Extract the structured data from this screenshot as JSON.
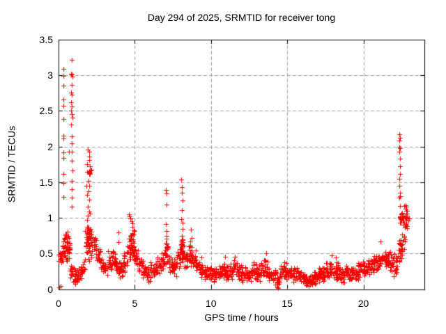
{
  "chart_data": {
    "type": "scatter",
    "title": "Day 294 of 2025, SRMTID for receiver tong",
    "xlabel": "GPS time / hours",
    "ylabel": "SRMTID / TECUs",
    "xlim": [
      0,
      24
    ],
    "ylim": [
      0,
      3.5
    ],
    "xticks": [
      0,
      5,
      10,
      15,
      20
    ],
    "yticks": [
      0,
      0.5,
      1,
      1.5,
      2,
      2.5,
      3,
      3.5
    ],
    "grid": true,
    "grid_color": "#9c9c9c",
    "marker": "plus",
    "marker_color": "#ff0000",
    "axis_color": "#000000",
    "background": "#ffffff",
    "legend": null,
    "seed": 20251021,
    "band_bin_width": 0.25,
    "band": [
      [
        0.125,
        0.3,
        0.55,
        16
      ],
      [
        0.375,
        0.3,
        0.82,
        18
      ],
      [
        0.625,
        0.25,
        0.88,
        18
      ],
      [
        0.875,
        0.1,
        0.4,
        16
      ],
      [
        1.125,
        0.05,
        0.28,
        16
      ],
      [
        1.375,
        0.08,
        0.3,
        16
      ],
      [
        1.625,
        0.15,
        0.45,
        16
      ],
      [
        1.875,
        0.3,
        0.95,
        18
      ],
      [
        2.125,
        0.35,
        0.9,
        18
      ],
      [
        2.375,
        0.35,
        0.85,
        16
      ],
      [
        2.625,
        0.3,
        0.6,
        16
      ],
      [
        2.875,
        0.22,
        0.48,
        16
      ],
      [
        3.125,
        0.18,
        0.42,
        16
      ],
      [
        3.375,
        0.25,
        0.55,
        16
      ],
      [
        3.625,
        0.28,
        0.58,
        16
      ],
      [
        3.875,
        0.15,
        0.45,
        16
      ],
      [
        4.125,
        0.12,
        0.4,
        16
      ],
      [
        4.375,
        0.2,
        0.55,
        16
      ],
      [
        4.625,
        0.3,
        0.75,
        18
      ],
      [
        4.875,
        0.35,
        0.95,
        18
      ],
      [
        5.125,
        0.3,
        0.6,
        16
      ],
      [
        5.375,
        0.22,
        0.5,
        16
      ],
      [
        5.625,
        0.15,
        0.4,
        16
      ],
      [
        5.875,
        0.1,
        0.32,
        16
      ],
      [
        6.125,
        0.1,
        0.4,
        16
      ],
      [
        6.375,
        0.12,
        0.42,
        16
      ],
      [
        6.625,
        0.18,
        0.5,
        16
      ],
      [
        6.875,
        0.25,
        0.6,
        16
      ],
      [
        7.125,
        0.3,
        0.65,
        16
      ],
      [
        7.375,
        0.2,
        0.5,
        16
      ],
      [
        7.625,
        0.15,
        0.45,
        16
      ],
      [
        7.875,
        0.25,
        0.6,
        16
      ],
      [
        8.125,
        0.3,
        0.7,
        18
      ],
      [
        8.375,
        0.25,
        0.6,
        16
      ],
      [
        8.625,
        0.3,
        0.65,
        16
      ],
      [
        8.875,
        0.25,
        0.55,
        16
      ],
      [
        9.125,
        0.2,
        0.45,
        16
      ],
      [
        9.375,
        0.15,
        0.42,
        16
      ],
      [
        9.625,
        0.12,
        0.35,
        16
      ],
      [
        9.875,
        0.1,
        0.32,
        16
      ],
      [
        10.125,
        0.1,
        0.32,
        16
      ],
      [
        10.375,
        0.12,
        0.35,
        16
      ],
      [
        10.625,
        0.1,
        0.35,
        16
      ],
      [
        10.875,
        0.12,
        0.42,
        16
      ],
      [
        11.125,
        0.1,
        0.35,
        16
      ],
      [
        11.375,
        0.12,
        0.38,
        16
      ],
      [
        11.625,
        0.15,
        0.45,
        16
      ],
      [
        11.875,
        0.1,
        0.38,
        16
      ],
      [
        12.125,
        0.1,
        0.35,
        16
      ],
      [
        12.375,
        0.08,
        0.3,
        16
      ],
      [
        12.625,
        0.1,
        0.35,
        16
      ],
      [
        12.875,
        0.12,
        0.4,
        16
      ],
      [
        13.125,
        0.1,
        0.35,
        16
      ],
      [
        13.375,
        0.12,
        0.4,
        16
      ],
      [
        13.625,
        0.15,
        0.48,
        16
      ],
      [
        13.875,
        0.08,
        0.3,
        16
      ],
      [
        14.125,
        0.05,
        0.28,
        16
      ],
      [
        14.375,
        0.02,
        0.25,
        16
      ],
      [
        14.625,
        0.08,
        0.35,
        16
      ],
      [
        14.875,
        0.1,
        0.4,
        16
      ],
      [
        15.125,
        0.1,
        0.35,
        16
      ],
      [
        15.375,
        0.08,
        0.32,
        16
      ],
      [
        15.625,
        0.1,
        0.35,
        16
      ],
      [
        15.875,
        0.08,
        0.3,
        16
      ],
      [
        16.125,
        0.05,
        0.28,
        16
      ],
      [
        16.375,
        0.03,
        0.22,
        16
      ],
      [
        16.625,
        0.03,
        0.2,
        16
      ],
      [
        16.875,
        0.05,
        0.28,
        16
      ],
      [
        17.125,
        0.08,
        0.32,
        16
      ],
      [
        17.375,
        0.1,
        0.35,
        16
      ],
      [
        17.625,
        0.1,
        0.4,
        16
      ],
      [
        17.875,
        0.12,
        0.45,
        16
      ],
      [
        18.125,
        0.1,
        0.42,
        16
      ],
      [
        18.375,
        0.1,
        0.38,
        16
      ],
      [
        18.625,
        0.08,
        0.32,
        16
      ],
      [
        18.875,
        0.1,
        0.35,
        16
      ],
      [
        19.125,
        0.08,
        0.32,
        16
      ],
      [
        19.375,
        0.1,
        0.35,
        16
      ],
      [
        19.625,
        0.12,
        0.38,
        16
      ],
      [
        19.875,
        0.15,
        0.4,
        16
      ],
      [
        20.125,
        0.15,
        0.42,
        16
      ],
      [
        20.375,
        0.18,
        0.45,
        16
      ],
      [
        20.625,
        0.2,
        0.48,
        16
      ],
      [
        20.875,
        0.25,
        0.52,
        16
      ],
      [
        21.125,
        0.28,
        0.55,
        16
      ],
      [
        21.375,
        0.3,
        0.58,
        16
      ],
      [
        21.625,
        0.25,
        0.55,
        16
      ],
      [
        21.875,
        0.15,
        0.6,
        16
      ],
      [
        22.125,
        0.08,
        0.55,
        16
      ],
      [
        22.375,
        0.25,
        0.85,
        14
      ],
      [
        22.625,
        0.5,
        0.9,
        8
      ],
      [
        22.875,
        0.85,
        1.2,
        8
      ]
    ],
    "clusters": [
      [
        0.55,
        0.18,
        0.62,
        0.22,
        18
      ],
      [
        1.95,
        0.12,
        0.74,
        0.38,
        26
      ],
      [
        2.02,
        0.14,
        1.64,
        0.06,
        10
      ],
      [
        4.8,
        0.15,
        0.62,
        0.25,
        16
      ],
      [
        7.06,
        0.05,
        0.62,
        0.15,
        8
      ],
      [
        8.1,
        0.06,
        0.55,
        0.25,
        12
      ],
      [
        22.45,
        0.1,
        0.55,
        0.25,
        14
      ],
      [
        22.62,
        0.25,
        1.02,
        0.18,
        40
      ]
    ],
    "points": [
      [
        0.31,
        3.09
      ],
      [
        0.3,
        2.99
      ],
      [
        0.31,
        2.86
      ],
      [
        0.32,
        2.66
      ],
      [
        0.31,
        2.57
      ],
      [
        0.3,
        2.39
      ],
      [
        0.31,
        2.15
      ],
      [
        0.32,
        2.11
      ],
      [
        0.3,
        1.92
      ],
      [
        0.31,
        1.84
      ],
      [
        0.3,
        1.62
      ],
      [
        0.31,
        1.49
      ],
      [
        0.3,
        1.29
      ],
      [
        0.88,
        3.22
      ],
      [
        0.8,
        3.02
      ],
      [
        0.85,
        3.01
      ],
      [
        0.9,
        2.98
      ],
      [
        0.86,
        2.87
      ],
      [
        0.8,
        2.76
      ],
      [
        0.88,
        2.73
      ],
      [
        0.82,
        2.62
      ],
      [
        0.88,
        2.56
      ],
      [
        0.82,
        2.5
      ],
      [
        0.86,
        2.46
      ],
      [
        0.9,
        2.41
      ],
      [
        0.84,
        2.31
      ],
      [
        0.87,
        2.14
      ],
      [
        0.85,
        2.05
      ],
      [
        0.7,
        1.93
      ],
      [
        0.88,
        1.93
      ],
      [
        0.85,
        1.8
      ],
      [
        0.9,
        1.66
      ],
      [
        0.86,
        1.52
      ],
      [
        0.89,
        1.4
      ],
      [
        0.85,
        1.28
      ],
      [
        0.88,
        1.16
      ],
      [
        1.94,
        1.96
      ],
      [
        1.99,
        1.86
      ],
      [
        2.03,
        1.93
      ],
      [
        2.03,
        1.81
      ],
      [
        1.87,
        1.75
      ],
      [
        2.06,
        1.72
      ],
      [
        1.95,
        1.52
      ],
      [
        1.83,
        1.45
      ],
      [
        2.0,
        1.45
      ],
      [
        1.95,
        1.37
      ],
      [
        1.87,
        1.32
      ],
      [
        2.02,
        1.25
      ],
      [
        1.91,
        1.16
      ],
      [
        3.92,
        0.8
      ],
      [
        3.95,
        0.66
      ],
      [
        4.62,
        1.05
      ],
      [
        4.66,
        1.02
      ],
      [
        4.72,
        0.99
      ],
      [
        4.78,
        0.95
      ],
      [
        4.85,
        0.92
      ],
      [
        7.04,
        1.39
      ],
      [
        7.1,
        1.34
      ],
      [
        7.07,
        1.19
      ],
      [
        7.05,
        0.91
      ],
      [
        7.09,
        0.82
      ],
      [
        7.07,
        0.75
      ],
      [
        8.04,
        1.54
      ],
      [
        8.07,
        1.43
      ],
      [
        8.1,
        1.35
      ],
      [
        8.12,
        1.24
      ],
      [
        8.09,
        1.11
      ],
      [
        8.06,
        0.98
      ],
      [
        8.12,
        0.93
      ],
      [
        8.15,
        0.84
      ],
      [
        8.09,
        0.75
      ],
      [
        8.04,
        0.67
      ],
      [
        8.68,
        0.83
      ],
      [
        8.73,
        0.72
      ],
      [
        8.65,
        0.67
      ],
      [
        22.35,
        2.17
      ],
      [
        22.38,
        2.12
      ],
      [
        22.36,
        2.08
      ],
      [
        22.34,
        2.0
      ],
      [
        22.4,
        1.98
      ],
      [
        22.37,
        1.93
      ],
      [
        22.39,
        1.83
      ],
      [
        22.41,
        1.72
      ],
      [
        22.38,
        1.62
      ],
      [
        22.36,
        1.55
      ],
      [
        22.34,
        1.45
      ],
      [
        22.39,
        1.35
      ],
      [
        22.37,
        1.28
      ],
      [
        22.42,
        1.3
      ],
      [
        14.35,
        0.02
      ],
      [
        14.38,
        0.01
      ],
      [
        0.05,
        0.02
      ],
      [
        0.12,
        0.04
      ],
      [
        21.1,
        0.67
      ],
      [
        13.62,
        0.5
      ],
      [
        10.92,
        0.45
      ],
      [
        17.92,
        0.47
      ],
      [
        18.2,
        0.44
      ],
      [
        11.55,
        0.45
      ],
      [
        9.35,
        0.44
      ]
    ]
  }
}
